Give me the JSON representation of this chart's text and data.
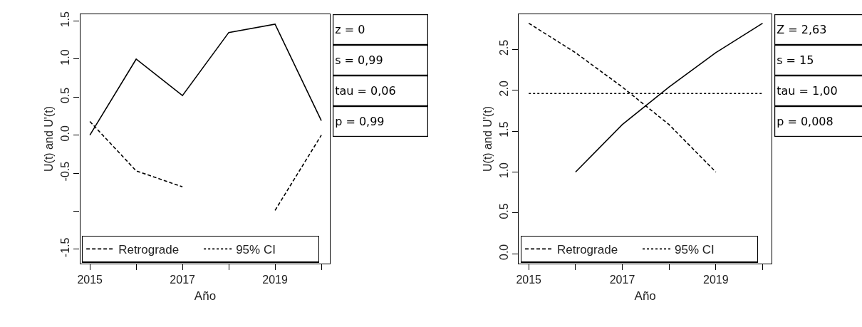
{
  "chart_data": [
    {
      "type": "line",
      "xlabel": "Año",
      "ylabel": "U(t) and U'(t)",
      "x": [
        2015,
        2016,
        2017,
        2018,
        2019,
        2020
      ],
      "xlim": [
        2014.79,
        2020.19
      ],
      "xticks": [
        2015,
        {
          "value": 2016,
          "label": null
        },
        2017,
        {
          "value": 2018,
          "label": null
        },
        2019,
        {
          "value": 2020,
          "label": null
        }
      ],
      "ylim": [
        -1.69,
        1.59
      ],
      "yticks": [
        {
          "value": -1.5,
          "label": "-1.5"
        },
        {
          "value": -1,
          "label": null
        },
        {
          "value": -0.5,
          "label": "-0.5"
        },
        {
          "value": 0,
          "label": "0.0"
        },
        {
          "value": 0.5,
          "label": "0.5"
        },
        {
          "value": 1,
          "label": "1.0"
        },
        {
          "value": 1.5,
          "label": "1.5"
        }
      ],
      "grid": false,
      "legend": "bottom",
      "series": [
        {
          "color": "#000000",
          "line_style": "solid",
          "values": [
            0.0,
            1.0,
            0.52,
            1.35,
            1.46,
            0.19
          ]
        },
        {
          "name": "Retrograde",
          "color": "#000000",
          "line_style": "dashed",
          "values": [
            0.18,
            -0.47,
            -0.68,
            null,
            -0.99,
            0.0
          ]
        },
        {
          "name": "95% CI",
          "color": "#000000",
          "line_style": "dotted",
          "values": [
            null,
            null,
            null,
            null,
            null,
            null
          ]
        }
      ],
      "annotations": [
        "z = 0",
        "s = 0,99",
        "tau = 0,06",
        "p = 0,99"
      ]
    },
    {
      "type": "line",
      "xlabel": "Año",
      "ylabel": "U(t) and U'(t)",
      "x": [
        2015,
        2016,
        2017,
        2018,
        2019,
        2020
      ],
      "xlim": [
        2014.79,
        2020.19
      ],
      "xticks": [
        2015,
        {
          "value": 2016,
          "label": null
        },
        2017,
        {
          "value": 2018,
          "label": null
        },
        2019,
        {
          "value": 2020,
          "label": null
        }
      ],
      "ylim": [
        -0.12,
        2.93
      ],
      "yticks": [
        {
          "value": 0,
          "label": "0.0"
        },
        {
          "value": 0.5,
          "label": "0.5"
        },
        {
          "value": 1,
          "label": "1.0"
        },
        {
          "value": 1.5,
          "label": "1.5"
        },
        {
          "value": 2,
          "label": "2.0"
        },
        {
          "value": 2.5,
          "label": "2.5"
        }
      ],
      "grid": false,
      "legend": "bottom",
      "series": [
        {
          "color": "#000000",
          "line_style": "solid",
          "values": [
            null,
            1.0,
            1.58,
            2.04,
            2.46,
            2.82
          ]
        },
        {
          "name": "Retrograde",
          "color": "#000000",
          "line_style": "dashed",
          "values": [
            2.82,
            2.46,
            2.04,
            1.58,
            1.0,
            null
          ]
        },
        {
          "name": "95% CI",
          "color": "#000000",
          "line_style": "dotted",
          "values": [
            1.96,
            1.96,
            1.96,
            1.96,
            1.96,
            1.96
          ]
        }
      ],
      "annotations": [
        "Z = 2,63",
        "s = 15",
        "tau = 1,00",
        "p = 0,008"
      ]
    }
  ]
}
